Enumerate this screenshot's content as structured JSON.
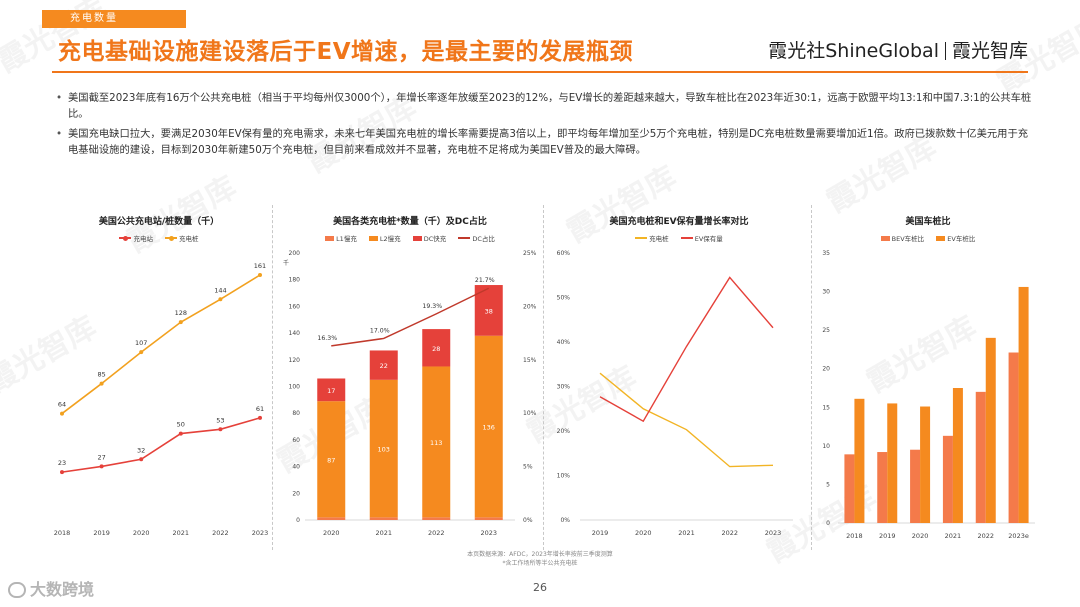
{
  "header": {
    "section_tag": "充电数量",
    "title": "充电基础设施建设落后于EV增速，是最主要的发展瓶颈",
    "brand_left": "霞光社",
    "brand_en": "ShineGlobal",
    "brand_right": "霞光智库"
  },
  "bullets": [
    "美国截至2023年底有16万个公共充电桩（相当于平均每州仅3000个），年增长率逐年放缓至2023的12%，与EV增长的差距越来越大，导致车桩比在2023年近30:1，远高于欧盟平均13:1和中国7.3:1的公共车桩比。",
    "美国充电缺口拉大，要满足2030年EV保有量的充电需求，未来七年美国充电桩的增长率需要提高3倍以上，即平均每年增加至少5万个充电桩，特别是DC充电桩数量需要增加近1倍。政府已拨款数十亿美元用于充电基础设施的建设，目标到2030年新建50万个充电桩，但目前来看成效并不显著，充电桩不足将成为美国EV普及的最大障碍。"
  ],
  "watermark": "霞光智库",
  "footer": {
    "source_line1": "本页数据来源：AFDC，2023年增长率按前三季度测算",
    "source_line2": "*含工作场所等半公共充电桩",
    "page_number": "26",
    "logo_text": "大数跨境"
  },
  "colors": {
    "accent": "#f0761a",
    "orange": "#f58a1f",
    "red": "#e5413a",
    "yellow": "#f2b425",
    "dark_red": "#c0392b",
    "salmon": "#f47a4a"
  },
  "chart_data": [
    {
      "type": "line",
      "title": "美国公共充电站/桩数量（千）",
      "categories": [
        "2018",
        "2019",
        "2020",
        "2021",
        "2022",
        "2023"
      ],
      "series": [
        {
          "name": "充电站",
          "values": [
            23,
            27,
            32,
            50,
            53,
            61
          ],
          "color": "#e5413a"
        },
        {
          "name": "充电桩",
          "values": [
            64,
            85,
            107,
            128,
            144,
            161
          ],
          "color": "#f2a11f"
        }
      ],
      "ylim": [
        0,
        175
      ]
    },
    {
      "type": "bar",
      "title": "美国各类充电桩*数量（千）及DC占比",
      "y_unit": "千",
      "categories": [
        "2020",
        "2021",
        "2022",
        "2023"
      ],
      "series": [
        {
          "name": "L1慢充",
          "values": [
            2,
            2,
            2,
            2
          ],
          "color": "#f47a4a"
        },
        {
          "name": "L2慢充",
          "values": [
            87,
            103,
            113,
            136
          ],
          "color": "#f58a1f"
        },
        {
          "name": "DC快充",
          "values": [
            17,
            22,
            28,
            38
          ],
          "color": "#e5413a"
        },
        {
          "name": "DC占比",
          "values": [
            16.3,
            17.0,
            19.3,
            21.7
          ],
          "color": "#c0392b",
          "axis": "right"
        }
      ],
      "ylim": [
        0,
        200
      ],
      "yticks": [
        0,
        20,
        40,
        60,
        80,
        100,
        120,
        140,
        160,
        180,
        200
      ],
      "y2lim": [
        0,
        25
      ],
      "y2ticks": [
        "0%",
        "5%",
        "10%",
        "15%",
        "20%",
        "25%"
      ],
      "line_labels": [
        "16.3%",
        "17.0%",
        "19.3%",
        "21.7%"
      ],
      "l2_labels": [
        "87",
        "103",
        "113",
        "136"
      ],
      "dc_labels": [
        "17",
        "22",
        "28",
        "38"
      ]
    },
    {
      "type": "line",
      "title": "美国充电桩和EV保有量增长率对比",
      "categories": [
        "2019",
        "2020",
        "2021",
        "2022",
        "2023"
      ],
      "series": [
        {
          "name": "充电桩",
          "values": [
            33,
            25,
            20.3,
            12,
            12.3
          ],
          "color": "#f2b425"
        },
        {
          "name": "EV保有量",
          "values": [
            27.7,
            22.2,
            39,
            54.5,
            43.2
          ],
          "color": "#e5413a"
        }
      ],
      "ylim": [
        0,
        60
      ],
      "yticks": [
        "0%",
        "10%",
        "20%",
        "30%",
        "40%",
        "50%",
        "60%"
      ]
    },
    {
      "type": "bar",
      "title": "美国车桩比",
      "categories": [
        "2018",
        "2019",
        "2020",
        "2021",
        "2022",
        "2023e"
      ],
      "series": [
        {
          "name": "BEV车桩比",
          "values": [
            8.9,
            9.2,
            9.5,
            11.3,
            17,
            22.1
          ],
          "color": "#f47a4a"
        },
        {
          "name": "EV车桩比",
          "values": [
            16.1,
            15.5,
            15.1,
            17.5,
            24,
            30.6
          ],
          "color": "#f58a1f"
        }
      ],
      "ylim": [
        0,
        35
      ],
      "yticks": [
        "0",
        "5",
        "10",
        "15",
        "20",
        "25",
        "30",
        "35"
      ]
    }
  ]
}
